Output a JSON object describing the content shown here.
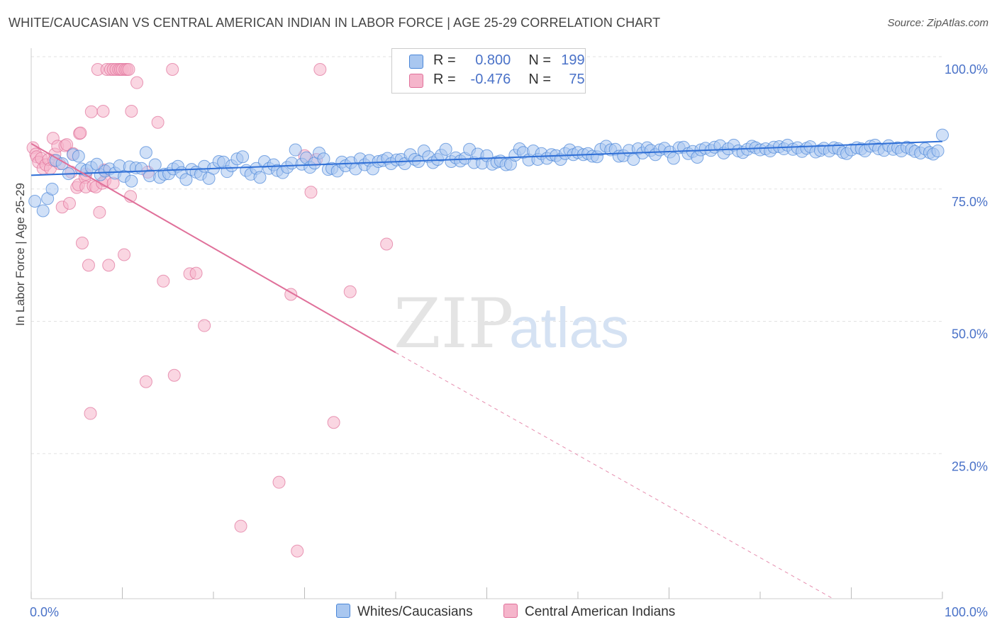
{
  "title": "WHITE/CAUCASIAN VS CENTRAL AMERICAN INDIAN IN LABOR FORCE | AGE 25-29 CORRELATION CHART",
  "source": "Source: ZipAtlas.com",
  "watermark": {
    "zip": "ZIP",
    "atlas": "atlas"
  },
  "legend": {
    "r_label": "R =",
    "n_label": "N =",
    "rows": [
      {
        "r": "0.800",
        "n": "199",
        "color": "#a9c7f0"
      },
      {
        "r": "-0.476",
        "n": "75",
        "color": "#f5b5cb"
      }
    ]
  },
  "bottom_legend": [
    "Whites/Caucasians",
    "Central American Indians"
  ],
  "chart_data": {
    "type": "scatter",
    "title": "WHITE/CAUCASIAN VS CENTRAL AMERICAN INDIAN IN LABOR FORCE | AGE 25-29 CORRELATION CHART",
    "ylabel": "In Labor Force | Age 25-29",
    "xlim": [
      0,
      100
    ],
    "ylim": [
      0,
      100
    ],
    "x_tick_labels": [
      "0.0%",
      "100.0%"
    ],
    "y_tick_labels": [
      "100.0%",
      "75.0%",
      "50.0%",
      "25.0%"
    ],
    "y_tick_values": [
      100,
      75,
      50,
      25
    ],
    "grid": true,
    "series": [
      {
        "name": "Whites/Caucasians",
        "color": "#4a86d8",
        "fill": "#a9c7f0",
        "r": 0.8,
        "n": 199,
        "trend": {
          "x": [
            0,
            100
          ],
          "y": [
            80.0,
            86.4
          ]
        },
        "points": [
          [
            0.4,
            75.1
          ],
          [
            1.3,
            73.3
          ],
          [
            1.8,
            75.6
          ],
          [
            2.3,
            77.4
          ],
          [
            2.7,
            82.8
          ],
          [
            3.4,
            82.2
          ],
          [
            4.1,
            80.3
          ],
          [
            4.6,
            83.9
          ],
          [
            5.2,
            83.6
          ],
          [
            5.5,
            81.2
          ],
          [
            6.1,
            80.9
          ],
          [
            6.6,
            81.5
          ],
          [
            7.2,
            82.1
          ],
          [
            7.6,
            80.1
          ],
          [
            8.1,
            80.8
          ],
          [
            8.6,
            81.2
          ],
          [
            9.2,
            80.4
          ],
          [
            9.7,
            81.8
          ],
          [
            10.2,
            79.8
          ],
          [
            10.8,
            81.6
          ],
          [
            11.0,
            78.9
          ],
          [
            11.5,
            81.4
          ],
          [
            12.1,
            81.3
          ],
          [
            12.6,
            84.3
          ],
          [
            13.0,
            79.9
          ],
          [
            13.6,
            82.0
          ],
          [
            14.1,
            79.6
          ],
          [
            14.6,
            80.2
          ],
          [
            15.1,
            80.3
          ],
          [
            15.6,
            81.2
          ],
          [
            16.1,
            81.7
          ],
          [
            16.5,
            80.5
          ],
          [
            17.0,
            79.2
          ],
          [
            17.6,
            81.1
          ],
          [
            18.1,
            80.6
          ],
          [
            18.6,
            80.2
          ],
          [
            19.0,
            81.7
          ],
          [
            19.5,
            79.4
          ],
          [
            20.0,
            81.3
          ],
          [
            20.6,
            82.6
          ],
          [
            21.1,
            82.5
          ],
          [
            21.5,
            80.7
          ],
          [
            22.0,
            81.8
          ],
          [
            22.6,
            83.1
          ],
          [
            23.2,
            83.5
          ],
          [
            23.6,
            80.9
          ],
          [
            24.1,
            80.2
          ],
          [
            24.7,
            81.3
          ],
          [
            25.1,
            79.6
          ],
          [
            25.6,
            82.6
          ],
          [
            26.1,
            81.3
          ],
          [
            26.6,
            82.0
          ],
          [
            27.0,
            80.9
          ],
          [
            27.6,
            80.5
          ],
          [
            28.1,
            81.5
          ],
          [
            28.6,
            82.3
          ],
          [
            29.0,
            84.8
          ],
          [
            29.7,
            82.1
          ],
          [
            30.2,
            83.3
          ],
          [
            30.6,
            81.5
          ],
          [
            31.1,
            82.3
          ],
          [
            31.6,
            84.2
          ],
          [
            32.1,
            83.1
          ],
          [
            32.6,
            81.1
          ],
          [
            33.0,
            81.3
          ],
          [
            33.6,
            80.8
          ],
          [
            34.1,
            82.5
          ],
          [
            34.5,
            81.8
          ],
          [
            35.1,
            82.4
          ],
          [
            35.6,
            81.2
          ],
          [
            36.1,
            83.1
          ],
          [
            36.6,
            82.0
          ],
          [
            37.1,
            82.8
          ],
          [
            37.5,
            81.2
          ],
          [
            38.1,
            82.6
          ],
          [
            38.6,
            82.8
          ],
          [
            39.1,
            83.2
          ],
          [
            39.5,
            82.2
          ],
          [
            40.1,
            82.9
          ],
          [
            40.6,
            83.0
          ],
          [
            41.0,
            82.2
          ],
          [
            41.6,
            83.9
          ],
          [
            42.1,
            83.0
          ],
          [
            42.5,
            82.6
          ],
          [
            43.1,
            84.6
          ],
          [
            43.6,
            83.5
          ],
          [
            44.1,
            82.4
          ],
          [
            44.6,
            83.0
          ],
          [
            45.0,
            83.8
          ],
          [
            45.5,
            84.9
          ],
          [
            46.1,
            82.6
          ],
          [
            46.6,
            83.3
          ],
          [
            47.1,
            82.7
          ],
          [
            47.6,
            83.2
          ],
          [
            48.1,
            84.9
          ],
          [
            48.6,
            82.4
          ],
          [
            49.0,
            84.0
          ],
          [
            49.5,
            82.3
          ],
          [
            50.0,
            83.7
          ],
          [
            50.6,
            82.1
          ],
          [
            51.1,
            82.5
          ],
          [
            51.5,
            82.7
          ],
          [
            52.1,
            82.0
          ],
          [
            52.6,
            82.1
          ],
          [
            53.1,
            83.8
          ],
          [
            53.6,
            85.0
          ],
          [
            54.0,
            84.3
          ],
          [
            54.6,
            82.9
          ],
          [
            55.1,
            84.6
          ],
          [
            55.6,
            83.0
          ],
          [
            56.0,
            84.1
          ],
          [
            56.6,
            83.2
          ],
          [
            57.1,
            83.9
          ],
          [
            57.6,
            83.7
          ],
          [
            58.1,
            83.0
          ],
          [
            58.6,
            84.1
          ],
          [
            59.1,
            84.8
          ],
          [
            59.5,
            83.9
          ],
          [
            60.0,
            84.3
          ],
          [
            60.6,
            83.9
          ],
          [
            61.1,
            84.1
          ],
          [
            61.6,
            83.6
          ],
          [
            62.1,
            83.5
          ],
          [
            62.5,
            84.9
          ],
          [
            63.1,
            85.5
          ],
          [
            63.6,
            84.8
          ],
          [
            64.1,
            84.9
          ],
          [
            64.5,
            83.6
          ],
          [
            65.0,
            83.7
          ],
          [
            65.6,
            84.7
          ],
          [
            66.1,
            83.0
          ],
          [
            66.6,
            85.0
          ],
          [
            67.1,
            84.2
          ],
          [
            67.6,
            85.2
          ],
          [
            68.0,
            84.7
          ],
          [
            68.5,
            83.9
          ],
          [
            69.0,
            84.8
          ],
          [
            69.5,
            85.1
          ],
          [
            70.1,
            84.4
          ],
          [
            70.5,
            83.2
          ],
          [
            71.1,
            85.2
          ],
          [
            71.6,
            85.3
          ],
          [
            72.1,
            84.1
          ],
          [
            72.6,
            84.5
          ],
          [
            73.1,
            83.4
          ],
          [
            73.5,
            84.8
          ],
          [
            74.0,
            85.1
          ],
          [
            74.6,
            84.7
          ],
          [
            75.0,
            85.3
          ],
          [
            75.6,
            85.6
          ],
          [
            76.0,
            84.2
          ],
          [
            76.5,
            85.0
          ],
          [
            77.1,
            85.7
          ],
          [
            77.6,
            84.6
          ],
          [
            78.1,
            84.3
          ],
          [
            78.6,
            84.9
          ],
          [
            79.1,
            85.5
          ],
          [
            79.5,
            85.2
          ],
          [
            80.0,
            84.8
          ],
          [
            80.6,
            85.0
          ],
          [
            81.1,
            84.6
          ],
          [
            81.5,
            85.3
          ],
          [
            82.1,
            85.4
          ],
          [
            82.6,
            85.0
          ],
          [
            83.0,
            85.7
          ],
          [
            83.6,
            84.9
          ],
          [
            84.1,
            85.2
          ],
          [
            84.6,
            84.5
          ],
          [
            85.1,
            85.1
          ],
          [
            85.5,
            85.4
          ],
          [
            86.1,
            84.4
          ],
          [
            86.6,
            84.7
          ],
          [
            87.0,
            85.1
          ],
          [
            87.6,
            84.6
          ],
          [
            88.1,
            85.2
          ],
          [
            88.6,
            85.0
          ],
          [
            89.1,
            84.3
          ],
          [
            89.5,
            84.1
          ],
          [
            90.0,
            84.8
          ],
          [
            90.6,
            85.2
          ],
          [
            91.1,
            85.0
          ],
          [
            91.5,
            84.6
          ],
          [
            92.1,
            85.5
          ],
          [
            92.6,
            85.7
          ],
          [
            93.0,
            85.0
          ],
          [
            93.6,
            84.7
          ],
          [
            94.1,
            85.6
          ],
          [
            94.6,
            84.9
          ],
          [
            95.1,
            85.2
          ],
          [
            95.5,
            84.6
          ],
          [
            96.1,
            85.3
          ],
          [
            96.6,
            84.9
          ],
          [
            97.0,
            84.5
          ],
          [
            97.6,
            84.2
          ],
          [
            98.1,
            85.0
          ],
          [
            98.6,
            84.3
          ],
          [
            99.0,
            84.0
          ],
          [
            99.5,
            84.6
          ],
          [
            100.0,
            87.6
          ]
        ]
      },
      {
        "name": "Central American Indians",
        "color": "#e0709a",
        "fill": "#f5b5cb",
        "r": -0.476,
        "n": 75,
        "trend": {
          "x": [
            0,
            40.0,
            88.0
          ],
          "y": [
            86.0,
            46.5,
            0.0
          ]
        },
        "points": [
          [
            0.2,
            85.2
          ],
          [
            0.5,
            84.0
          ],
          [
            0.6,
            83.5
          ],
          [
            0.8,
            82.5
          ],
          [
            1.1,
            83.2
          ],
          [
            1.3,
            81.3
          ],
          [
            1.6,
            82.0
          ],
          [
            1.9,
            83.0
          ],
          [
            2.1,
            81.3
          ],
          [
            2.4,
            87.0
          ],
          [
            2.6,
            84.0
          ],
          [
            2.9,
            85.5
          ],
          [
            3.1,
            82.2
          ],
          [
            3.4,
            74.0
          ],
          [
            3.7,
            85.6
          ],
          [
            3.9,
            85.8
          ],
          [
            4.2,
            74.7
          ],
          [
            4.4,
            80.6
          ],
          [
            4.6,
            84.1
          ],
          [
            5.0,
            77.7
          ],
          [
            5.2,
            78.2
          ],
          [
            5.3,
            87.9
          ],
          [
            5.4,
            88.0
          ],
          [
            5.6,
            67.2
          ],
          [
            5.9,
            79.6
          ],
          [
            6.0,
            77.8
          ],
          [
            6.3,
            63.0
          ],
          [
            6.5,
            35.0
          ],
          [
            6.6,
            92.0
          ],
          [
            6.8,
            78.0
          ],
          [
            7.1,
            77.8
          ],
          [
            7.3,
            100.0
          ],
          [
            7.5,
            73.0
          ],
          [
            7.8,
            78.5
          ],
          [
            7.9,
            92.1
          ],
          [
            8.1,
            79.0
          ],
          [
            8.3,
            100.0
          ],
          [
            8.5,
            63.0
          ],
          [
            8.7,
            100.0
          ],
          [
            9.0,
            100.0
          ],
          [
            9.3,
            100.0
          ],
          [
            9.6,
            100.0
          ],
          [
            9.8,
            100.0
          ],
          [
            10.0,
            100.0
          ],
          [
            10.3,
            100.0
          ],
          [
            10.5,
            100.0
          ],
          [
            10.7,
            100.0
          ],
          [
            10.2,
            65.0
          ],
          [
            10.9,
            76.0
          ],
          [
            11.0,
            92.1
          ],
          [
            11.6,
            97.5
          ],
          [
            12.6,
            41.0
          ],
          [
            12.8,
            80.6
          ],
          [
            13.9,
            90.0
          ],
          [
            14.5,
            60.0
          ],
          [
            15.5,
            100.0
          ],
          [
            15.7,
            42.2
          ],
          [
            17.4,
            61.4
          ],
          [
            18.1,
            61.5
          ],
          [
            19.0,
            51.6
          ],
          [
            23.0,
            13.7
          ],
          [
            27.2,
            22.0
          ],
          [
            28.5,
            57.5
          ],
          [
            29.2,
            9.0
          ],
          [
            30.0,
            83.7
          ],
          [
            30.7,
            76.8
          ],
          [
            31.3,
            83.0
          ],
          [
            31.7,
            100.0
          ],
          [
            33.2,
            33.3
          ],
          [
            35.0,
            58.0
          ],
          [
            39.0,
            67.0
          ],
          [
            8.0,
            81.0
          ],
          [
            9.0,
            78.5
          ],
          [
            6.0,
            80.2
          ],
          [
            2.5,
            82.8
          ]
        ]
      }
    ]
  }
}
